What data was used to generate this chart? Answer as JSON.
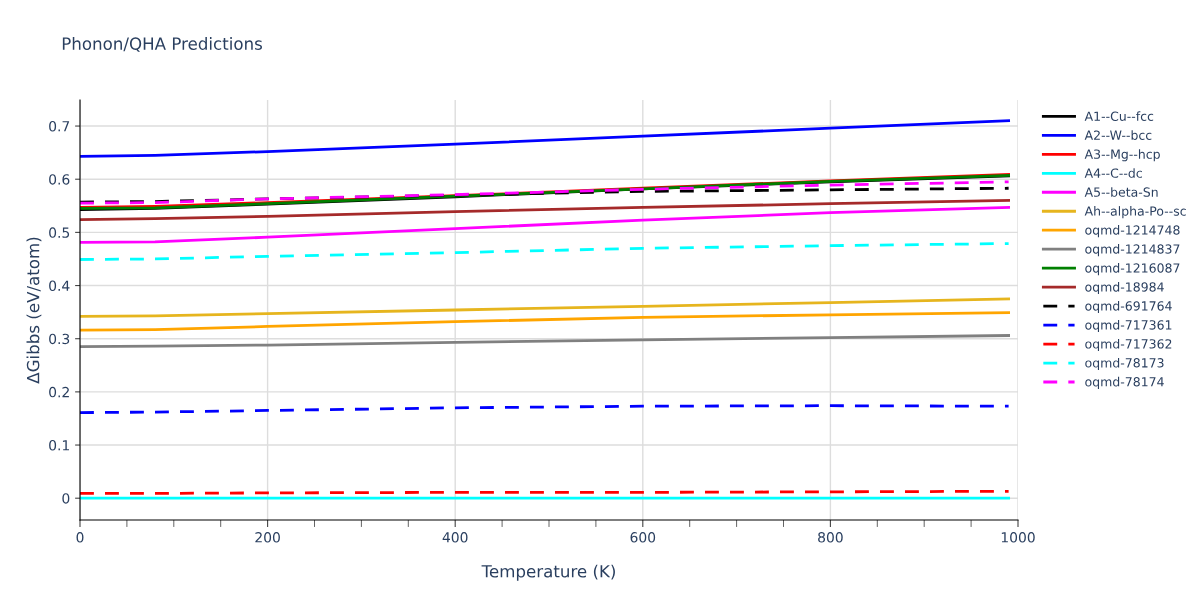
{
  "chart_data": {
    "type": "line",
    "title": "Phonon/QHA Predictions",
    "xlabel": "Temperature (K)",
    "ylabel": "ΔGibbs (eV/atom)",
    "x": [
      0,
      80,
      200,
      400,
      600,
      800,
      990
    ],
    "xlim": [
      0,
      1000
    ],
    "ylim": [
      -0.041,
      0.749
    ],
    "xticks": [
      0,
      {
        "value": 50,
        "label": null
      },
      {
        "value": 100,
        "label": null
      },
      {
        "value": 150,
        "label": null
      },
      200,
      {
        "value": 250,
        "label": null
      },
      {
        "value": 300,
        "label": null
      },
      {
        "value": 350,
        "label": null
      },
      400,
      {
        "value": 450,
        "label": null
      },
      {
        "value": 500,
        "label": null
      },
      {
        "value": 550,
        "label": null
      },
      600,
      {
        "value": 650,
        "label": null
      },
      {
        "value": 700,
        "label": null
      },
      {
        "value": 750,
        "label": null
      },
      800,
      {
        "value": 850,
        "label": null
      },
      {
        "value": 900,
        "label": null
      },
      {
        "value": 950,
        "label": null
      },
      1000
    ],
    "yticks": [
      0,
      0.1,
      0.2,
      0.3,
      0.4,
      0.5,
      0.6,
      0.7
    ],
    "grid": true,
    "legend": "right",
    "marker": "none",
    "series": [
      {
        "name": "A1--Cu--fcc",
        "color": "#000000",
        "line_style": "solid",
        "values": [
          0.543,
          0.545,
          0.553,
          0.567,
          0.582,
          0.595,
          0.606
        ]
      },
      {
        "name": "A2--W--bcc",
        "color": "#0000ff",
        "line_style": "solid",
        "values": [
          0.643,
          0.645,
          0.652,
          0.666,
          0.681,
          0.696,
          0.71
        ]
      },
      {
        "name": "A3--Mg--hcp",
        "color": "#ff0000",
        "line_style": "solid",
        "values": [
          0.547,
          0.549,
          0.556,
          0.569,
          0.583,
          0.597,
          0.609
        ]
      },
      {
        "name": "A4--C--dc",
        "color": "#00ffff",
        "line_style": "solid",
        "values": [
          0,
          0,
          0,
          0,
          0,
          0,
          0
        ]
      },
      {
        "name": "A5--beta-Sn",
        "color": "#ff00ff",
        "line_style": "solid",
        "values": [
          0.481,
          0.482,
          0.491,
          0.507,
          0.523,
          0.537,
          0.547
        ]
      },
      {
        "name": "Ah--alpha-Po--sc",
        "color": "#e6b51e",
        "line_style": "solid",
        "values": [
          0.342,
          0.343,
          0.347,
          0.354,
          0.361,
          0.368,
          0.375
        ]
      },
      {
        "name": "oqmd-1214748",
        "color": "#ffa500",
        "line_style": "solid",
        "values": [
          0.316,
          0.317,
          0.323,
          0.332,
          0.34,
          0.345,
          0.349
        ]
      },
      {
        "name": "oqmd-1214837",
        "color": "#808080",
        "line_style": "solid",
        "values": [
          0.285,
          0.286,
          0.288,
          0.293,
          0.298,
          0.302,
          0.306
        ]
      },
      {
        "name": "oqmd-1216087",
        "color": "#008000",
        "line_style": "solid",
        "values": [
          0.545,
          0.546,
          0.554,
          0.568,
          0.582,
          0.596,
          0.607
        ]
      },
      {
        "name": "oqmd-18984",
        "color": "#a52a2a",
        "line_style": "solid",
        "values": [
          0.524,
          0.526,
          0.53,
          0.539,
          0.547,
          0.554,
          0.56
        ]
      },
      {
        "name": "oqmd-691764",
        "color": "#000000",
        "line_style": "dashed",
        "values": [
          0.557,
          0.558,
          0.563,
          0.57,
          0.577,
          0.58,
          0.583
        ]
      },
      {
        "name": "oqmd-717361",
        "color": "#0000ff",
        "line_style": "dashed",
        "values": [
          0.161,
          0.162,
          0.165,
          0.17,
          0.173,
          0.174,
          0.173
        ]
      },
      {
        "name": "oqmd-717362",
        "color": "#ff0000",
        "line_style": "dashed",
        "values": [
          0.009,
          0.009,
          0.01,
          0.011,
          0.011,
          0.012,
          0.013
        ]
      },
      {
        "name": "oqmd-78173",
        "color": "#00ffff",
        "line_style": "dashed",
        "values": [
          0.449,
          0.45,
          0.455,
          0.462,
          0.47,
          0.475,
          0.479
        ]
      },
      {
        "name": "oqmd-78174",
        "color": "#ff00ff",
        "line_style": "dashed",
        "values": [
          0.555,
          0.556,
          0.563,
          0.571,
          0.581,
          0.589,
          0.595
        ]
      }
    ]
  }
}
